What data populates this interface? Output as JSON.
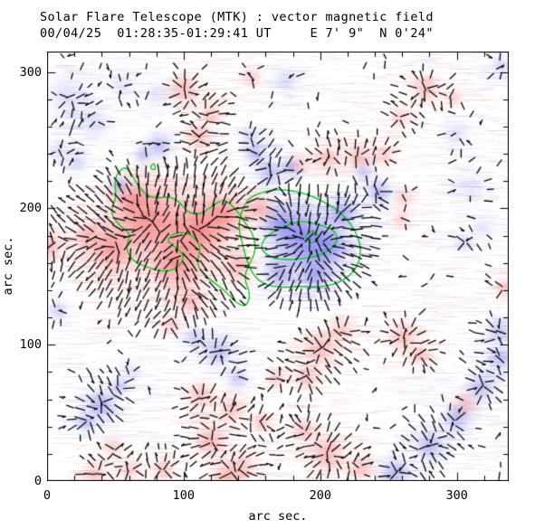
{
  "chart_data": {
    "type": "heatmap",
    "title": "Solar Flare Telescope (MTK) : vector magnetic field",
    "subtitle": "00/04/25  01:28:35-01:29:41 UT     E 7' 9\"  N 0'24\"",
    "xlabel": "arc sec.",
    "ylabel": "arc sec.",
    "xlim": [
      0,
      338
    ],
    "ylim": [
      0,
      315
    ],
    "major_ticks": [
      0,
      100,
      200,
      300
    ],
    "minor_tick_step": 20,
    "legend_position": "none",
    "grid": false,
    "colors": {
      "background": "#ffffff",
      "positive_polarity": "#f24646",
      "negative_polarity": "#5050e6",
      "contour": "#00c414",
      "vector": "#0a0a0a",
      "frame": "#000000",
      "noise_pink": "#f68c8c",
      "noise_blue": "#8c91f2"
    },
    "blobs": [
      [
        75,
        192,
        30,
        0.9
      ],
      [
        112,
        185,
        26,
        0.9
      ],
      [
        48,
        170,
        20,
        0.75
      ],
      [
        95,
        160,
        24,
        0.8
      ],
      [
        130,
        196,
        16,
        0.7
      ],
      [
        63,
        206,
        14,
        0.6
      ],
      [
        140,
        157,
        13,
        0.55
      ],
      [
        30,
        180,
        13,
        0.5
      ],
      [
        0,
        172,
        14,
        0.55
      ],
      [
        105,
        132,
        12,
        0.45
      ],
      [
        155,
        200,
        13,
        0.55
      ],
      [
        111,
        253,
        11,
        0.5
      ],
      [
        100,
        287,
        13,
        0.45
      ],
      [
        120,
        270,
        9,
        0.4
      ],
      [
        150,
        296,
        9,
        0.35
      ],
      [
        185,
        232,
        10,
        0.35
      ],
      [
        205,
        236,
        12,
        0.4
      ],
      [
        228,
        238,
        12,
        0.45
      ],
      [
        247,
        239,
        9,
        0.35
      ],
      [
        277,
        288,
        12,
        0.45
      ],
      [
        297,
        280,
        7,
        0.3
      ],
      [
        258,
        266,
        9,
        0.28
      ],
      [
        261,
        208,
        9,
        0.32
      ],
      [
        259,
        192,
        9,
        0.3
      ],
      [
        90,
        115,
        10,
        0.3
      ],
      [
        168,
        75,
        9,
        0.35
      ],
      [
        190,
        76,
        10,
        0.4
      ],
      [
        205,
        20,
        16,
        0.5
      ],
      [
        230,
        10,
        11,
        0.4
      ],
      [
        188,
        38,
        10,
        0.4
      ],
      [
        120,
        30,
        14,
        0.5
      ],
      [
        112,
        62,
        12,
        0.45
      ],
      [
        131,
        4,
        12,
        0.45
      ],
      [
        35,
        5,
        11,
        0.4
      ],
      [
        48,
        25,
        10,
        0.35
      ],
      [
        60,
        8,
        10,
        0.35
      ],
      [
        85,
        8,
        10,
        0.4
      ],
      [
        142,
        10,
        12,
        0.4
      ],
      [
        135,
        52,
        12,
        0.4
      ],
      [
        157,
        43,
        9,
        0.35
      ],
      [
        200,
        97,
        15,
        0.5
      ],
      [
        216,
        110,
        11,
        0.4
      ],
      [
        261,
        106,
        13,
        0.45
      ],
      [
        274,
        92,
        9,
        0.35
      ],
      [
        306,
        56,
        11,
        0.4
      ],
      [
        335,
        142,
        9,
        0.4
      ],
      [
        187,
        178,
        24,
        -0.95
      ],
      [
        205,
        172,
        17,
        -0.85
      ],
      [
        172,
        190,
        15,
        -0.75
      ],
      [
        197,
        152,
        15,
        -0.65
      ],
      [
        216,
        196,
        13,
        -0.65
      ],
      [
        170,
        154,
        13,
        -0.55
      ],
      [
        163,
        226,
        11,
        -0.55
      ],
      [
        152,
        240,
        9,
        -0.5
      ],
      [
        178,
        230,
        8,
        -0.45
      ],
      [
        148,
        253,
        8,
        -0.3
      ],
      [
        82,
        246,
        11,
        -0.5
      ],
      [
        70,
        239,
        8,
        -0.4
      ],
      [
        53,
        217,
        8,
        -0.45
      ],
      [
        22,
        234,
        9,
        -0.3
      ],
      [
        243,
        212,
        11,
        -0.5
      ],
      [
        232,
        226,
        8,
        -0.35
      ],
      [
        15,
        282,
        18,
        -0.25
      ],
      [
        35,
        262,
        15,
        -0.2
      ],
      [
        8,
        242,
        11,
        -0.2
      ],
      [
        55,
        290,
        11,
        -0.2
      ],
      [
        80,
        283,
        12,
        -0.18
      ],
      [
        175,
        294,
        11,
        -0.28
      ],
      [
        300,
        255,
        12,
        -0.2
      ],
      [
        333,
        304,
        9,
        -0.3
      ],
      [
        310,
        215,
        14,
        -0.18
      ],
      [
        320,
        185,
        12,
        -0.15
      ],
      [
        8,
        125,
        9,
        -0.35
      ],
      [
        40,
        56,
        13,
        -0.55
      ],
      [
        28,
        43,
        9,
        -0.45
      ],
      [
        53,
        69,
        8,
        -0.4
      ],
      [
        60,
        82,
        12,
        -0.15
      ],
      [
        125,
        95,
        14,
        -0.45
      ],
      [
        140,
        75,
        10,
        -0.35
      ],
      [
        108,
        105,
        10,
        -0.35
      ],
      [
        255,
        6,
        13,
        -0.55
      ],
      [
        280,
        26,
        13,
        -0.55
      ],
      [
        300,
        46,
        12,
        -0.5
      ],
      [
        318,
        69,
        12,
        -0.5
      ],
      [
        332,
        89,
        11,
        -0.45
      ],
      [
        331,
        110,
        11,
        -0.45
      ],
      [
        305,
        175,
        9,
        -0.25
      ]
    ],
    "contours": {
      "line_width": 1.3,
      "polygons": [
        [
          [
            56,
            231
          ],
          [
            49,
            222
          ],
          [
            51,
            209
          ],
          [
            46,
            197
          ],
          [
            53,
            187
          ],
          [
            62,
            181
          ],
          [
            57,
            171
          ],
          [
            63,
            161
          ],
          [
            73,
            157
          ],
          [
            86,
            153
          ],
          [
            97,
            157
          ],
          [
            101,
            166
          ],
          [
            93,
            172
          ],
          [
            87,
            177
          ],
          [
            95,
            183
          ],
          [
            106,
            181
          ],
          [
            113,
            172
          ],
          [
            109,
            159
          ],
          [
            117,
            149
          ],
          [
            129,
            141
          ],
          [
            139,
            130
          ],
          [
            146,
            128
          ],
          [
            149,
            137
          ],
          [
            144,
            149
          ],
          [
            148,
            159
          ],
          [
            153,
            169
          ],
          [
            151,
            181
          ],
          [
            144,
            191
          ],
          [
            137,
            201
          ],
          [
            129,
            207
          ],
          [
            120,
            201
          ],
          [
            111,
            195
          ],
          [
            103,
            197
          ],
          [
            97,
            205
          ],
          [
            89,
            209
          ],
          [
            79,
            207
          ],
          [
            71,
            211
          ],
          [
            65,
            219
          ],
          [
            61,
            227
          ]
        ],
        [
          [
            150,
            209
          ],
          [
            161,
            213
          ],
          [
            173,
            214
          ],
          [
            184,
            212
          ],
          [
            194,
            209
          ],
          [
            204,
            204
          ],
          [
            214,
            198
          ],
          [
            222,
            189
          ],
          [
            228,
            179
          ],
          [
            230,
            168
          ],
          [
            227,
            157
          ],
          [
            220,
            149
          ],
          [
            210,
            144
          ],
          [
            197,
            142
          ],
          [
            184,
            143
          ],
          [
            171,
            142
          ],
          [
            159,
            144
          ],
          [
            151,
            151
          ],
          [
            146,
            162
          ],
          [
            143,
            174
          ],
          [
            140,
            186
          ],
          [
            142,
            197
          ],
          [
            146,
            205
          ]
        ],
        [
          [
            156,
            170
          ],
          [
            164,
            164
          ],
          [
            174,
            162
          ],
          [
            185,
            163
          ],
          [
            195,
            164
          ],
          [
            203,
            167
          ],
          [
            210,
            172
          ],
          [
            213,
            178
          ],
          [
            210,
            184
          ],
          [
            203,
            187
          ],
          [
            195,
            189
          ],
          [
            187,
            191
          ],
          [
            177,
            188
          ],
          [
            167,
            184
          ],
          [
            159,
            178
          ]
        ],
        [
          [
            75,
            229
          ],
          [
            80,
            228
          ],
          [
            78,
            234
          ]
        ]
      ],
      "circle": {
        "x": 194,
        "y": 179,
        "r": 4.2
      }
    },
    "vectors": {
      "grid_step": 10.5,
      "strong_threshold": 0.28,
      "mid_threshold": 0.12,
      "mid_probability": 0.45,
      "sparse_probability": 0.07,
      "max_length": 13,
      "arrowhead_probability": 0.22,
      "line_width": 1.35
    },
    "noise": {
      "row_step": 2,
      "dashes_per_row": 14,
      "white_row_step": 3,
      "white_dashes_per_row": 6
    }
  }
}
